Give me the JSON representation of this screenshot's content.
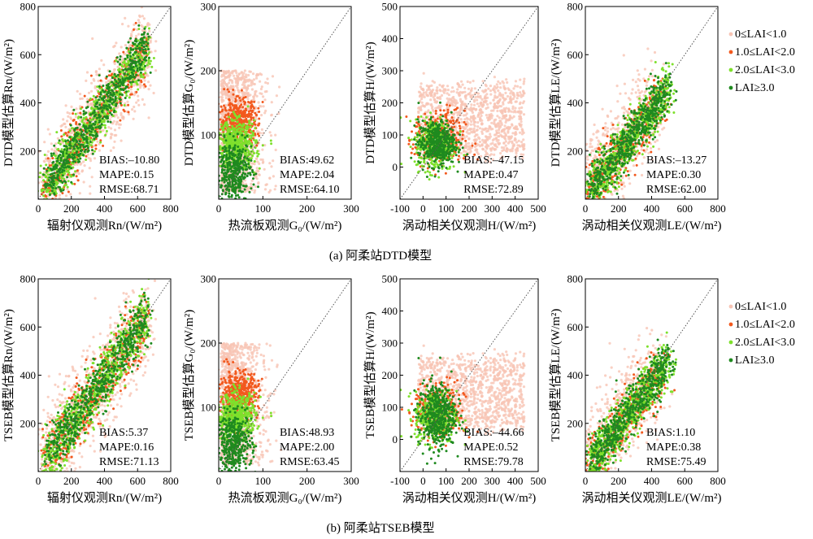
{
  "legend": {
    "entries": [
      {
        "label": "0≤LAI<1.0",
        "color": "#f7c4b4"
      },
      {
        "label": "1.0≤LAI<2.0",
        "color": "#f2591e"
      },
      {
        "label": "2.0≤LAI<3.0",
        "color": "#7ee02c"
      },
      {
        "label": "LAI≥3.0",
        "color": "#1f8a1f"
      }
    ]
  },
  "captions": [
    "(a) 阿柔站DTD模型",
    "(b) 阿柔站TSEB模型"
  ],
  "chart_data": [
    {
      "type": "scatter",
      "row": 0,
      "col": 0,
      "xlabel": "辐射仪观测Rn/(W/m²)",
      "ylabel": "DTD模型估算Rn/(W/m²)",
      "xlim": [
        0,
        800
      ],
      "ylim": [
        0,
        800
      ],
      "xticks": [
        0,
        200,
        400,
        600,
        800
      ],
      "yticks": [
        200,
        400,
        600,
        800
      ],
      "stats": [
        "BIAS:–10.80",
        "MAPE:0.15",
        "RMSE:68.71"
      ]
    },
    {
      "type": "scatter",
      "row": 0,
      "col": 1,
      "xlabel": "热流板观测G₀/(W/m²)",
      "ylabel": "DTD模型估算G₀/(W/m²)",
      "xlim": [
        0,
        300
      ],
      "ylim": [
        0,
        300
      ],
      "xticks": [
        0,
        100,
        200,
        300
      ],
      "yticks": [
        100,
        200,
        300
      ],
      "stats": [
        "BIAS:49.62",
        "MAPE:2.04",
        "RMSE:64.10"
      ]
    },
    {
      "type": "scatter",
      "row": 0,
      "col": 2,
      "xlabel": "涡动相关仪观测H/(W/m²)",
      "ylabel": "DTD模型估算H/(W/m²)",
      "xlim": [
        -100,
        500
      ],
      "ylim": [
        -100,
        500
      ],
      "xticks": [
        -100,
        0,
        100,
        200,
        300,
        400,
        500
      ],
      "yticks": [
        0,
        100,
        200,
        300,
        400,
        500
      ],
      "stats": [
        "BIAS:–47.15",
        "MAPE:0.47",
        "RMSE:72.89"
      ]
    },
    {
      "type": "scatter",
      "row": 0,
      "col": 3,
      "xlabel": "涡动相关仪观测LE/(W/m²)",
      "ylabel": "DTD模型估算LE/(W/m²)",
      "xlim": [
        0,
        800
      ],
      "ylim": [
        0,
        800
      ],
      "xticks": [
        0,
        200,
        400,
        600,
        800
      ],
      "yticks": [
        200,
        400,
        600,
        800
      ],
      "stats": [
        "BIAS:–13.27",
        "MAPE:0.30",
        "RMSE:62.00"
      ]
    },
    {
      "type": "scatter",
      "row": 1,
      "col": 0,
      "xlabel": "辐射仪观测Rn/(W/m²)",
      "ylabel": "TSEB模型估算Rn/(W/m²)",
      "xlim": [
        0,
        800
      ],
      "ylim": [
        0,
        800
      ],
      "xticks": [
        0,
        200,
        400,
        600,
        800
      ],
      "yticks": [
        200,
        400,
        600,
        800
      ],
      "stats": [
        "BIAS:5.37",
        "MAPE:0.16",
        "RMSE:71.13"
      ]
    },
    {
      "type": "scatter",
      "row": 1,
      "col": 1,
      "xlabel": "热流板观测G₀/(W/m²)",
      "ylabel": "TSEB模型估算G₀/(W/m²)",
      "xlim": [
        0,
        300
      ],
      "ylim": [
        0,
        300
      ],
      "xticks": [
        0,
        100,
        200,
        300
      ],
      "yticks": [
        100,
        200,
        300
      ],
      "stats": [
        "BIAS:48.93",
        "MAPE:2.00",
        "RMSE:63.45"
      ]
    },
    {
      "type": "scatter",
      "row": 1,
      "col": 2,
      "xlabel": "涡动相关仪观测H/(W/m²)",
      "ylabel": "TSEB模型估算H/(W/m²)",
      "xlim": [
        -100,
        500
      ],
      "ylim": [
        -100,
        500
      ],
      "xticks": [
        -100,
        0,
        100,
        200,
        300,
        400,
        500
      ],
      "yticks": [
        0,
        100,
        200,
        300,
        400,
        500
      ],
      "stats": [
        "BIAS:–44.66",
        "MAPE:0.52",
        "RMSE:79.78"
      ]
    },
    {
      "type": "scatter",
      "row": 1,
      "col": 3,
      "xlabel": "涡动相关仪观测LE/(W/m²)",
      "ylabel": "TSEB模型估算LE/(W/m²)",
      "xlim": [
        0,
        800
      ],
      "ylim": [
        0,
        800
      ],
      "xticks": [
        0,
        200,
        400,
        600,
        800
      ],
      "yticks": [
        200,
        400,
        600,
        800
      ],
      "stats": [
        "BIAS:1.10",
        "MAPE:0.38",
        "RMSE:75.49"
      ]
    }
  ]
}
